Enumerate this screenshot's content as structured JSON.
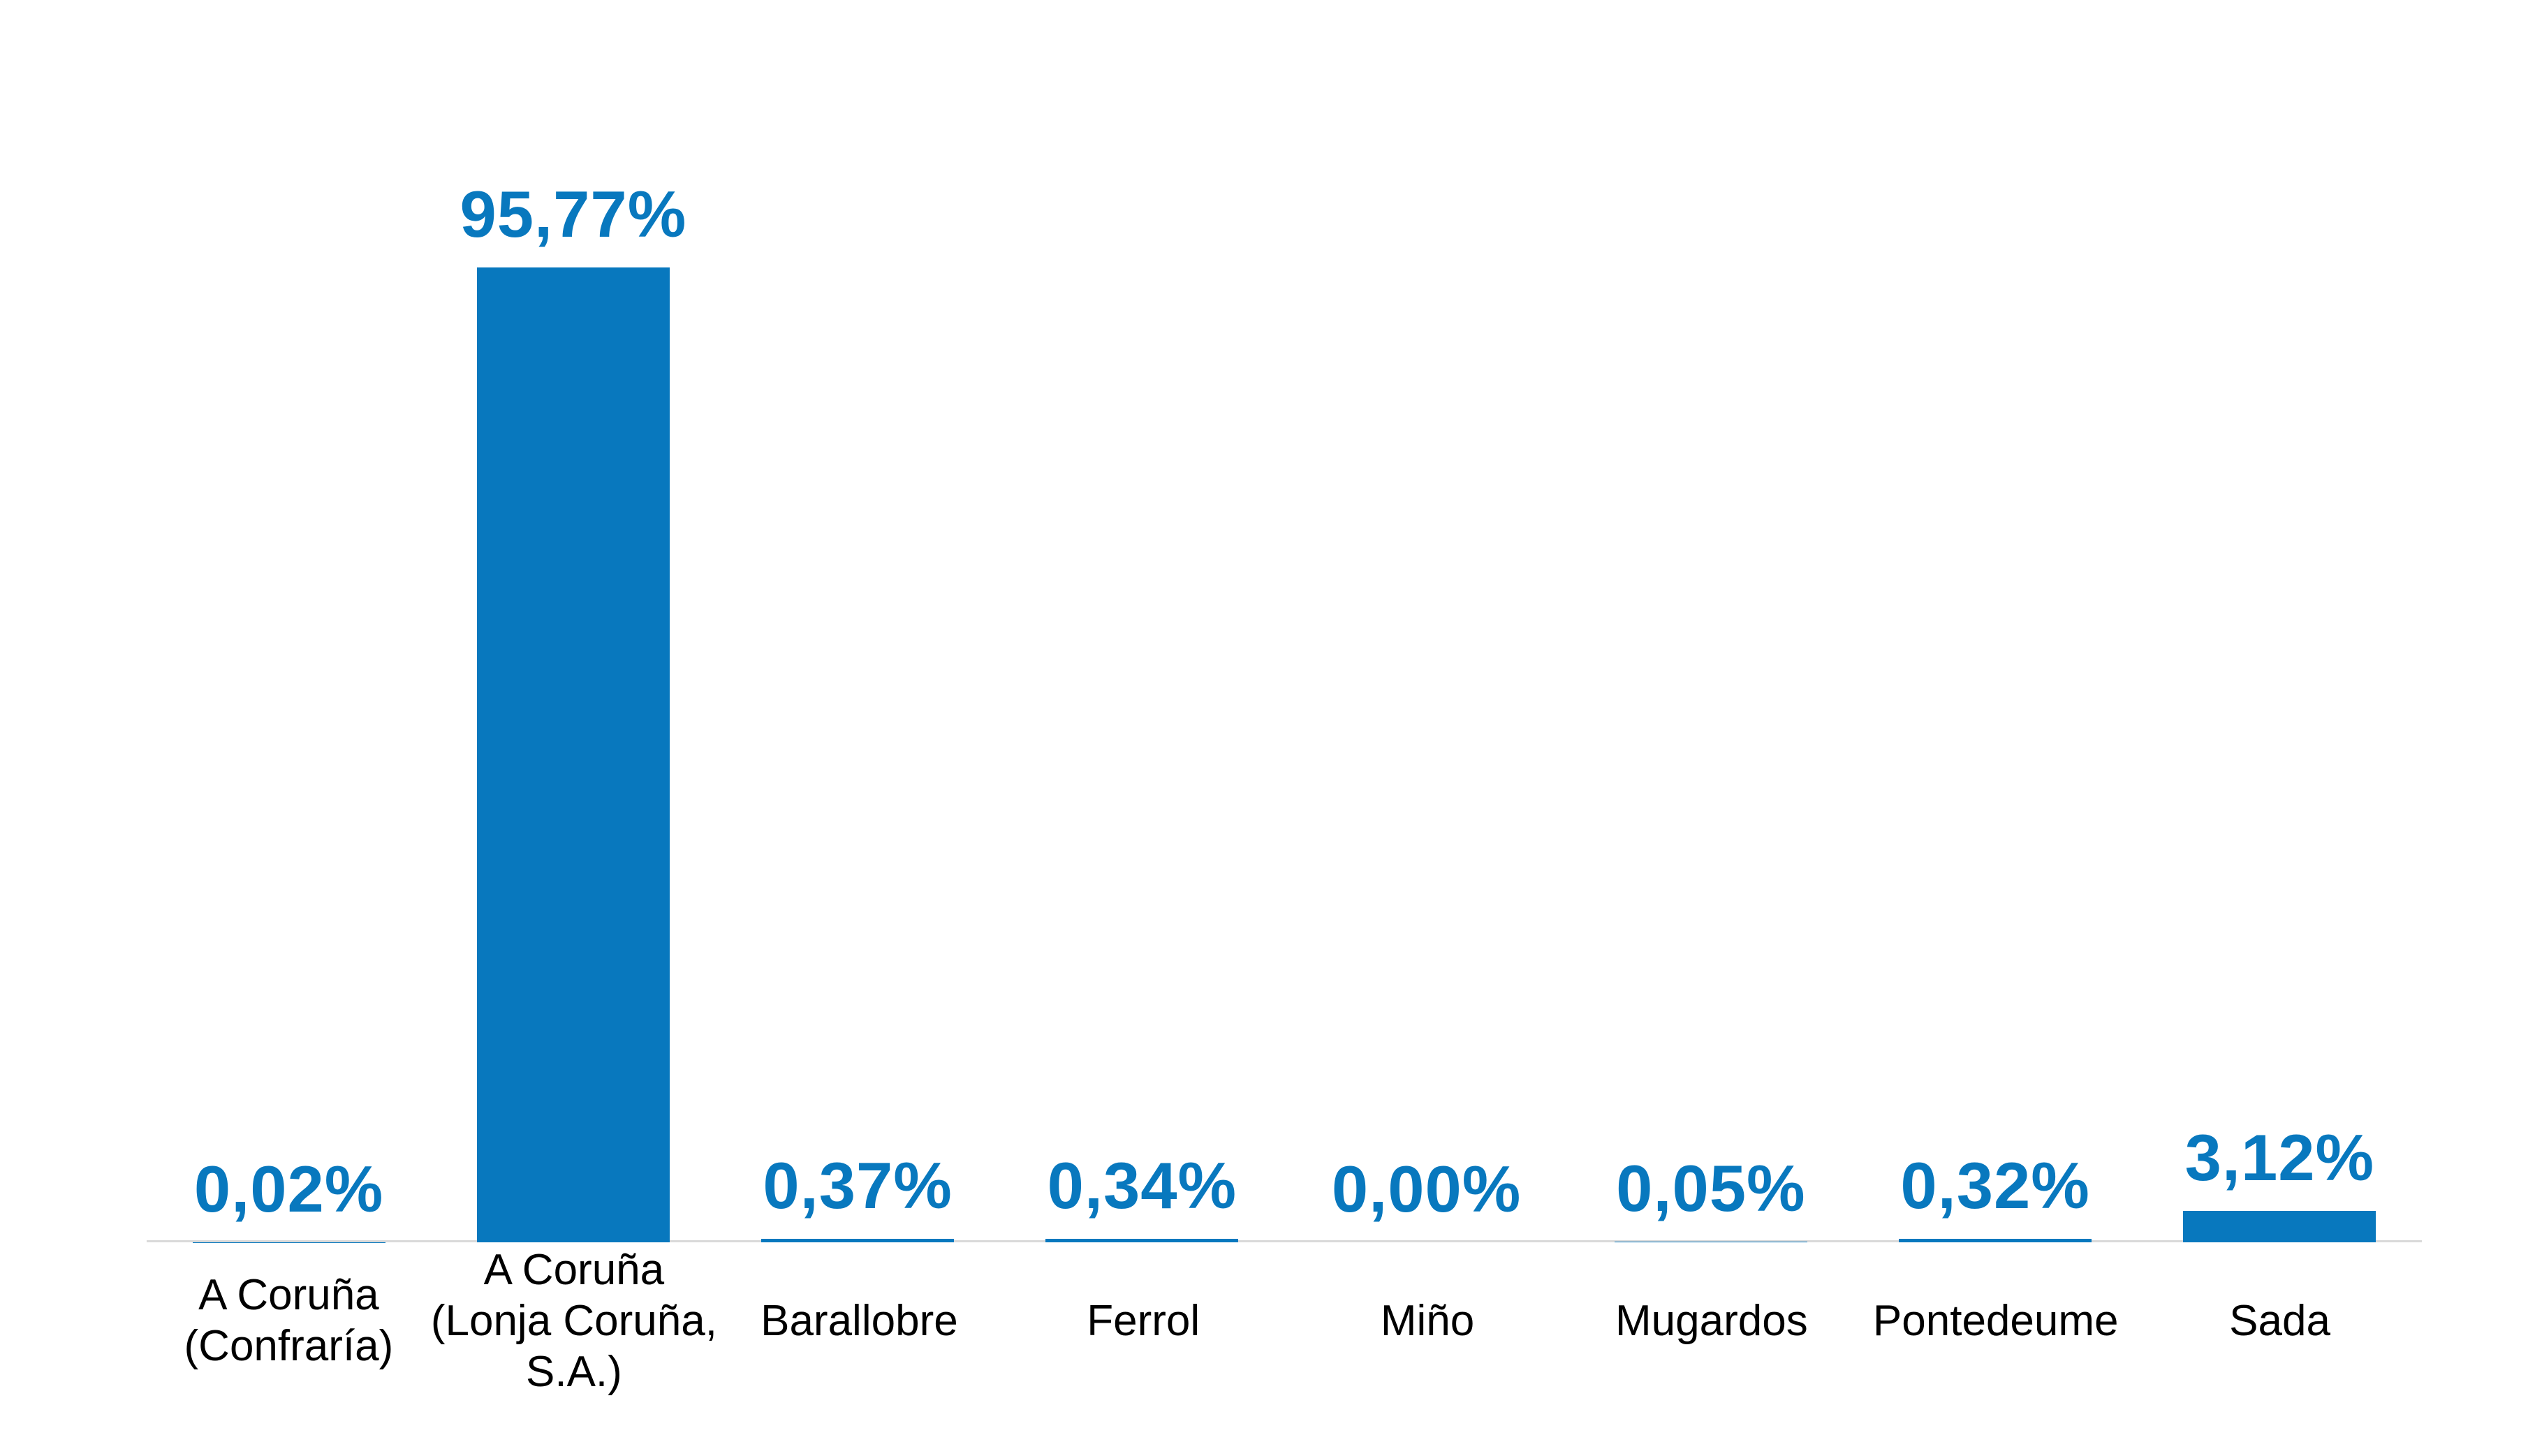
{
  "chart_data": {
    "type": "bar",
    "title": "",
    "xlabel": "",
    "ylabel": "",
    "categories": [
      "A Coruña (Confraría)",
      "A Coruña (Lonja Coruña, S.A.)",
      "Barallobre",
      "Ferrol",
      "Miño",
      "Mugardos",
      "Pontedeume",
      "Sada"
    ],
    "category_label_lines": [
      [
        "A Coruña",
        "(Confraría)"
      ],
      [
        "A Coruña",
        "(Lonja Coruña,",
        "S.A.)"
      ],
      [
        "Barallobre"
      ],
      [
        "Ferrol"
      ],
      [
        "Miño"
      ],
      [
        "Mugardos"
      ],
      [
        "Pontedeume"
      ],
      [
        "Sada"
      ]
    ],
    "values": [
      0.02,
      95.77,
      0.37,
      0.34,
      0.0,
      0.05,
      0.32,
      3.12
    ],
    "data_labels": [
      "0,02%",
      "95,77%",
      "0,37%",
      "0,34%",
      "0,00%",
      "0,05%",
      "0,32%",
      "3,12%"
    ],
    "decimal_separator": ",",
    "unit": "%",
    "ylim": [
      0,
      100
    ],
    "grid": false,
    "legend_position": "none",
    "y_axis_visible": false,
    "colors": {
      "bar": "#0878BE",
      "data_label": "#0878BE",
      "category_label": "#000000",
      "axis_line": "#D9D9D9",
      "background": "#FFFFFF"
    }
  }
}
